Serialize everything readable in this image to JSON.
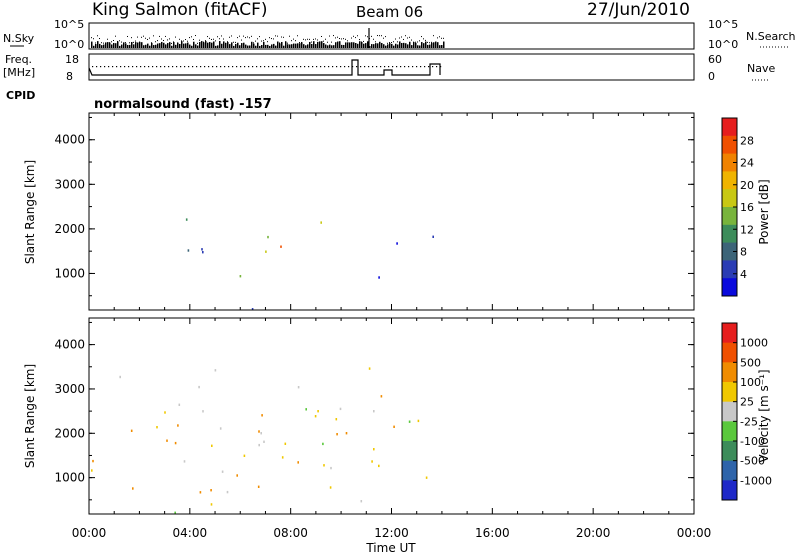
{
  "header": {
    "station": "King Salmon (fitACF)",
    "beam": "Beam 06",
    "date": "27/Jun/2010"
  },
  "status_panels": {
    "nsky_label": "N.Sky",
    "nsky_ticks": [
      "10^5",
      "10^0"
    ],
    "nsearch_label": "N.Search",
    "nsearch_ticks": [
      "10^5",
      "10^0"
    ],
    "freq_label_1": "Freq.",
    "freq_label_2": "[MHz]",
    "freq_ticks": [
      "18",
      "8"
    ],
    "nave_label": "Nave",
    "nave_ticks": [
      "60",
      "0"
    ],
    "cpid_label": "CPID",
    "cpid_value": "normalsound (fast) -157"
  },
  "chart_data": [
    {
      "type": "heatmap",
      "name": "power",
      "xlabel": "Time UT",
      "ylabel": "Slant Range [km]",
      "xlim": [
        0,
        24
      ],
      "ylim": [
        180,
        4600
      ],
      "x_ticks": [
        "00:00",
        "04:00",
        "08:00",
        "12:00",
        "16:00",
        "20:00",
        "00:00"
      ],
      "y_ticks": [
        "1000",
        "2000",
        "3000",
        "4000"
      ],
      "colorbar_label": "Power [dB]",
      "colorbar_ticks": [
        "28",
        "24",
        "20",
        "16",
        "12",
        "8",
        "4"
      ],
      "colors": [
        "#0a0adc",
        "#2a3cb4",
        "#3c6478",
        "#3c8c5a",
        "#78b43c",
        "#c8c814",
        "#f0b400",
        "#f08200",
        "#f05000",
        "#e61e1e"
      ],
      "data_end_hour": 14.1,
      "regions": [
        {
          "t0": 0.3,
          "t1": 9.7,
          "r0": 200,
          "r1": 280,
          "level": 0.08
        },
        {
          "t0": 0.4,
          "t1": 4.5,
          "r0": 1300,
          "r1": 1600,
          "level": 0.12
        },
        {
          "t0": 3.5,
          "t1": 5.5,
          "r0": 1750,
          "r1": 2300,
          "level": 0.3
        },
        {
          "t0": 5.0,
          "t1": 7.5,
          "r0": 1400,
          "r1": 2000,
          "level": 0.55
        },
        {
          "t0": 7.0,
          "t1": 9.5,
          "r0": 1450,
          "r1": 2300,
          "level": 0.7
        },
        {
          "t0": 4.8,
          "t1": 7.3,
          "r0": 600,
          "r1": 1100,
          "level": 0.45
        },
        {
          "t0": 0.0,
          "t1": 14.0,
          "r0": 400,
          "r1": 3500,
          "level": 0.1
        }
      ]
    },
    {
      "type": "heatmap",
      "name": "velocity",
      "xlabel": "Time UT",
      "ylabel": "Slant Range [km]",
      "xlim": [
        0,
        24
      ],
      "ylim": [
        180,
        4600
      ],
      "x_ticks": [
        "00:00",
        "04:00",
        "08:00",
        "12:00",
        "16:00",
        "20:00",
        "00:00"
      ],
      "y_ticks": [
        "1000",
        "2000",
        "3000",
        "4000"
      ],
      "colorbar_label": "Velocity [m s⁻¹]",
      "colorbar_ticks": [
        "1000",
        "500",
        "100",
        "25",
        "-25",
        "-100",
        "-500",
        "-1000"
      ],
      "colors": [
        "#1e28c8",
        "#2e64aa",
        "#3c8c5a",
        "#5ac83c",
        "#c8c8c8",
        "#f0c800",
        "#f08c00",
        "#f05000",
        "#e61e1e"
      ],
      "data_end_hour": 14.1,
      "regions": [
        {
          "t0": 0.3,
          "t1": 14.0,
          "r0": 200,
          "r1": 280,
          "level": 0.3
        },
        {
          "t0": 0.4,
          "t1": 4.5,
          "r0": 1300,
          "r1": 1600,
          "level": 0.5
        },
        {
          "t0": 3.5,
          "t1": 5.5,
          "r0": 1750,
          "r1": 2300,
          "level": 0.6
        },
        {
          "t0": 5.0,
          "t1": 9.5,
          "r0": 1400,
          "r1": 2300,
          "level": 0.55
        },
        {
          "t0": 4.8,
          "t1": 7.3,
          "r0": 600,
          "r1": 1100,
          "level": 0.85
        },
        {
          "t0": 0.0,
          "t1": 14.0,
          "r0": 400,
          "r1": 3500,
          "level": 0.6
        }
      ]
    }
  ]
}
